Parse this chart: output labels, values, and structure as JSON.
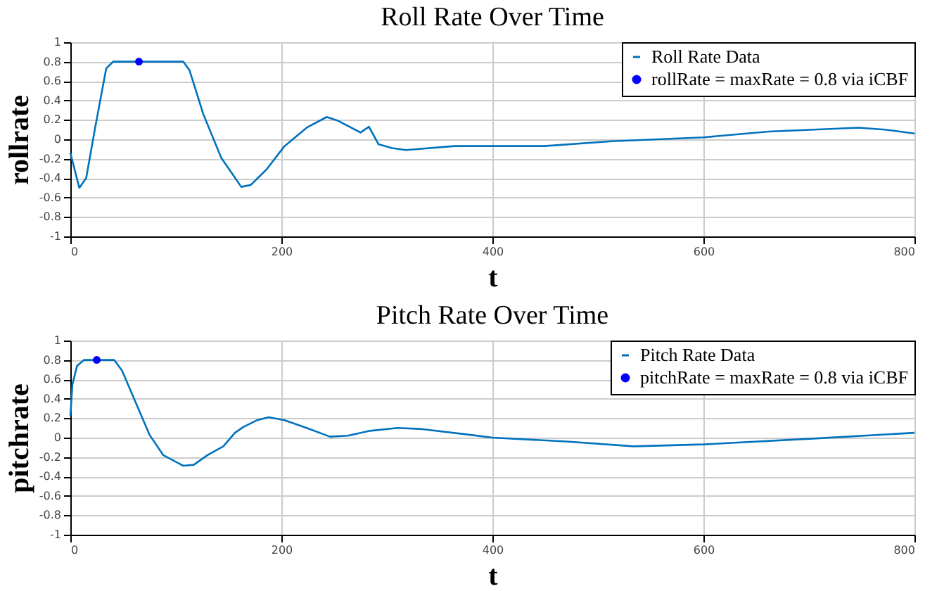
{
  "chart_data": [
    {
      "type": "line",
      "title": "Roll Rate Over Time",
      "xlabel": "t",
      "ylabel": "rollrate",
      "xlim": [
        0,
        800
      ],
      "xticks": [
        0,
        200,
        400,
        600,
        800
      ],
      "ylim": [
        -1,
        1
      ],
      "yticks": [
        -1,
        -0.8,
        -0.6,
        -0.4,
        -0.2,
        0,
        0.2,
        0.4,
        0.6,
        0.8,
        1
      ],
      "grid": true,
      "legend": "top right",
      "series": [
        {
          "name": "Roll Rate Data",
          "marker": "none",
          "color": "#0072bd",
          "x": [
            0,
            8.5,
            15,
            23.5,
            34,
            40.6,
            107,
            113,
            126,
            143,
            162,
            171,
            186,
            203,
            224,
            243,
            254,
            275,
            283,
            292,
            305,
            318,
            364,
            400,
            449,
            513,
            600,
            662,
            747,
            772,
            800
          ],
          "values": [
            -0.14,
            -0.5,
            -0.4,
            0.12,
            0.73,
            0.8,
            0.8,
            0.71,
            0.26,
            -0.19,
            -0.49,
            -0.47,
            -0.31,
            -0.07,
            0.12,
            0.23,
            0.19,
            0.07,
            0.13,
            -0.05,
            -0.09,
            -0.11,
            -0.07,
            -0.07,
            -0.07,
            -0.02,
            0.02,
            0.08,
            0.12,
            0.1,
            0.06
          ]
        },
        {
          "name": "rollRate = maxRate = 0.8 via iCBF",
          "type": "scatter",
          "marker": "circle",
          "color": "#0000ff",
          "x": [
            65
          ],
          "values": [
            0.8
          ]
        }
      ]
    },
    {
      "type": "line",
      "title": "Pitch Rate Over Time",
      "xlabel": "t",
      "ylabel": "pitchrate",
      "xlim": [
        0,
        800
      ],
      "xticks": [
        0,
        200,
        400,
        600,
        800
      ],
      "ylim": [
        -1,
        1
      ],
      "yticks": [
        -1,
        -0.8,
        -0.6,
        -0.4,
        -0.2,
        0,
        0.2,
        0.4,
        0.6,
        0.8,
        1
      ],
      "grid": true,
      "legend": "top right",
      "series": [
        {
          "name": "Pitch Rate Data",
          "marker": "none",
          "color": "#0072bd",
          "x": [
            0,
            2,
            6.4,
            13,
            41.5,
            49,
            62,
            75,
            88,
            107,
            117,
            130,
            145,
            156,
            164,
            177,
            188,
            203,
            224,
            246,
            263,
            284,
            310,
            331,
            378,
            400,
            470,
            534,
            600,
            704,
            800
          ],
          "values": [
            0.22,
            0.55,
            0.74,
            0.8,
            0.8,
            0.69,
            0.36,
            0.03,
            -0.18,
            -0.29,
            -0.28,
            -0.18,
            -0.09,
            0.05,
            0.11,
            0.18,
            0.21,
            0.18,
            0.1,
            0.01,
            0.02,
            0.07,
            0.1,
            0.09,
            0.03,
            0.0,
            -0.04,
            -0.09,
            -0.07,
            -0.01,
            0.05
          ]
        },
        {
          "name": "pitchRate = maxRate = 0.8 via iCBF",
          "type": "scatter",
          "marker": "circle",
          "color": "#0000ff",
          "x": [
            25
          ],
          "values": [
            0.8
          ]
        }
      ]
    }
  ]
}
